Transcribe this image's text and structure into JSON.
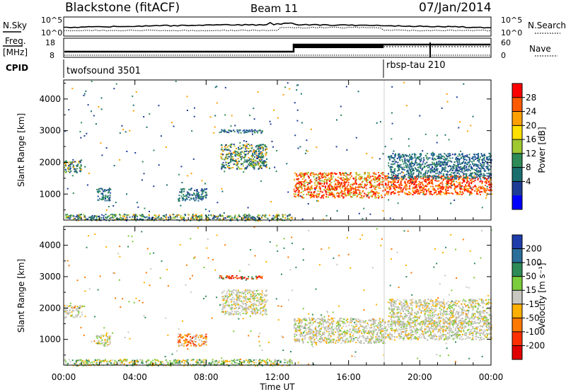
{
  "header": {
    "station": "Blackstone (fitACF)",
    "beam": "Beam 11",
    "date": "07/Jan/2014"
  },
  "noise_panel": {
    "left_label": "N.Sky",
    "right_label": "N.Search",
    "left_ticks": [
      "10^5",
      "10^0"
    ],
    "right_ticks": [
      "10^5",
      "10^0"
    ]
  },
  "freq_panel": {
    "left_label_top": "Freq.",
    "left_label_bottom": "[MHz]",
    "left_ticks": [
      "18",
      "8"
    ],
    "right_label": "Nave",
    "right_ticks": [
      "60",
      "0"
    ]
  },
  "cpid": {
    "label": "CPID",
    "modes": [
      {
        "name": "twofsound 3501",
        "start_hour": 0
      },
      {
        "name": "rbsp-tau 210",
        "start_hour": 18.0
      }
    ]
  },
  "chart_data": [
    {
      "type": "heatmap",
      "title": "Power",
      "ylabel": "Slant Range [km]",
      "xlabel": "",
      "xlim_hours": [
        0,
        24
      ],
      "ylim": [
        180,
        4600
      ],
      "yticks": [
        "1000",
        "2000",
        "3000",
        "4000"
      ],
      "colorbar": {
        "label": "Power [dB]",
        "ticks": [
          "28",
          "24",
          "20",
          "16",
          "12",
          "8",
          "4"
        ],
        "colors": [
          "#ff0000",
          "#ff5a00",
          "#ffa000",
          "#ffe000",
          "#a0c830",
          "#2e8b57",
          "#1a6e6e",
          "#1e3c96",
          "#0000ff"
        ]
      },
      "echo_regions": [
        {
          "t0": 0.0,
          "t1": 1.0,
          "r0": 1700,
          "r1": 2100,
          "level": "green"
        },
        {
          "t0": 1.8,
          "t1": 2.6,
          "r0": 800,
          "r1": 1200,
          "level": "teal"
        },
        {
          "t0": 6.4,
          "t1": 8.0,
          "r0": 800,
          "r1": 1200,
          "level": "teal"
        },
        {
          "t0": 8.8,
          "t1": 11.4,
          "r0": 1800,
          "r1": 2600,
          "level": "green"
        },
        {
          "t0": 8.6,
          "t1": 11.2,
          "r0": 2950,
          "r1": 3050,
          "level": "blue"
        },
        {
          "t0": 12.9,
          "t1": 18.0,
          "r0": 900,
          "r1": 1700,
          "level": "orange"
        },
        {
          "t0": 18.0,
          "t1": 24.0,
          "r0": 1000,
          "r1": 1600,
          "level": "red"
        },
        {
          "t0": 18.2,
          "t1": 24.0,
          "r0": 1500,
          "r1": 2300,
          "level": "teal"
        },
        {
          "t0": 0.0,
          "t1": 12.8,
          "r0": 180,
          "r1": 380,
          "level": "green"
        }
      ]
    },
    {
      "type": "heatmap",
      "title": "Velocity",
      "ylabel": "Slant Range [km]",
      "xlabel": "Time UT",
      "xlim_hours": [
        0,
        24
      ],
      "ylim": [
        180,
        4600
      ],
      "yticks": [
        "1000",
        "2000",
        "3000",
        "4000"
      ],
      "xticks": [
        "00:00",
        "04:00",
        "08:00",
        "12:00",
        "16:00",
        "20:00",
        "00:00"
      ],
      "colorbar": {
        "label": "Velocity [m s⁻¹]",
        "ticks": [
          "200",
          "100",
          "50",
          "15",
          "-15",
          "-50",
          "-100",
          "-200"
        ],
        "colors": [
          "#1e3caa",
          "#2a6e9a",
          "#2e8b57",
          "#7ccd3c",
          "#c8c8c0",
          "#ffb000",
          "#ff7800",
          "#ff3000",
          "#e00000"
        ]
      },
      "echo_regions": [
        {
          "t0": 0.0,
          "t1": 1.0,
          "r0": 1700,
          "r1": 2100,
          "level": "gray"
        },
        {
          "t0": 1.8,
          "t1": 2.6,
          "r0": 800,
          "r1": 1200,
          "level": "gray"
        },
        {
          "t0": 6.4,
          "t1": 8.0,
          "r0": 800,
          "r1": 1200,
          "level": "orange"
        },
        {
          "t0": 8.8,
          "t1": 11.4,
          "r0": 1800,
          "r1": 2600,
          "level": "gray"
        },
        {
          "t0": 8.6,
          "t1": 11.2,
          "r0": 2950,
          "r1": 3050,
          "level": "red"
        },
        {
          "t0": 12.9,
          "t1": 18.0,
          "r0": 900,
          "r1": 1700,
          "level": "gray"
        },
        {
          "t0": 18.0,
          "t1": 24.0,
          "r0": 1000,
          "r1": 1600,
          "level": "gray"
        },
        {
          "t0": 18.2,
          "t1": 24.0,
          "r0": 1500,
          "r1": 2300,
          "level": "gray"
        },
        {
          "t0": 0.0,
          "t1": 12.8,
          "r0": 180,
          "r1": 380,
          "level": "green"
        }
      ]
    }
  ]
}
